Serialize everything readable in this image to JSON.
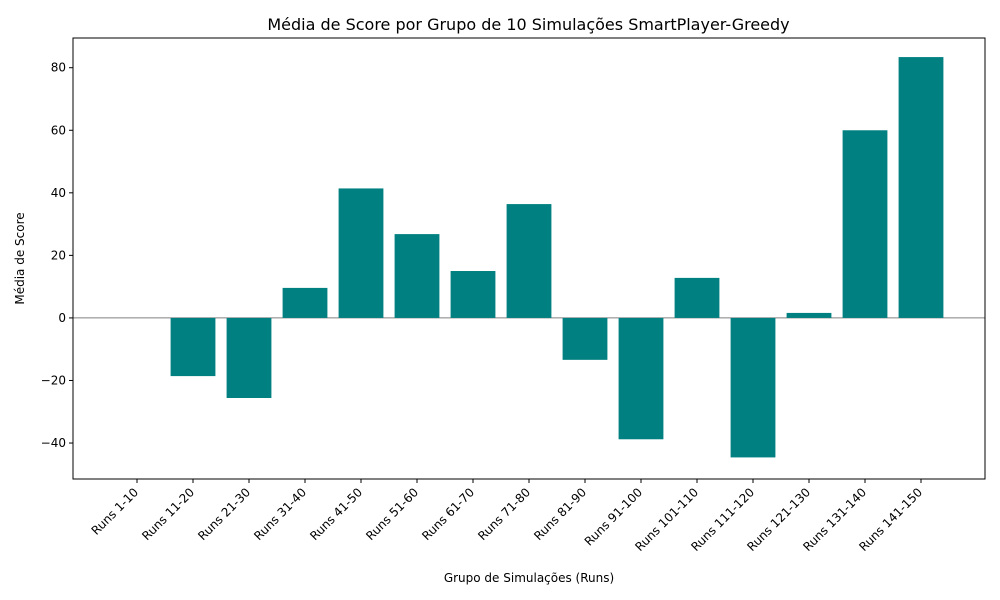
{
  "chart_data": {
    "type": "bar",
    "title": "Média de Score por Grupo de 10 Simulações SmartPlayer-Greedy",
    "xlabel": "Grupo de Simulações (Runs)",
    "ylabel": "Média de Score",
    "categories": [
      "Runs 1-10",
      "Runs 11-20",
      "Runs 21-30",
      "Runs 31-40",
      "Runs 41-50",
      "Runs 51-60",
      "Runs 61-70",
      "Runs 71-80",
      "Runs 81-90",
      "Runs 91-100",
      "Runs 101-110",
      "Runs 111-120",
      "Runs 121-130",
      "Runs 131-140",
      "Runs 141-150"
    ],
    "values": [
      0,
      -18.6,
      -25.6,
      9.6,
      41.4,
      26.8,
      15.0,
      36.4,
      -13.4,
      -38.8,
      12.8,
      -44.6,
      1.6,
      60.0,
      83.4
    ],
    "ylim": [
      -51.5,
      89.5
    ],
    "yticks": [
      -40,
      -20,
      0,
      20,
      40,
      60,
      80
    ],
    "ytick_labels": [
      "−40",
      "−20",
      "0",
      "20",
      "40",
      "60",
      "80"
    ],
    "bar_color": "#008080",
    "zero_line_color": "#808080",
    "grid": false,
    "legend": "none"
  }
}
